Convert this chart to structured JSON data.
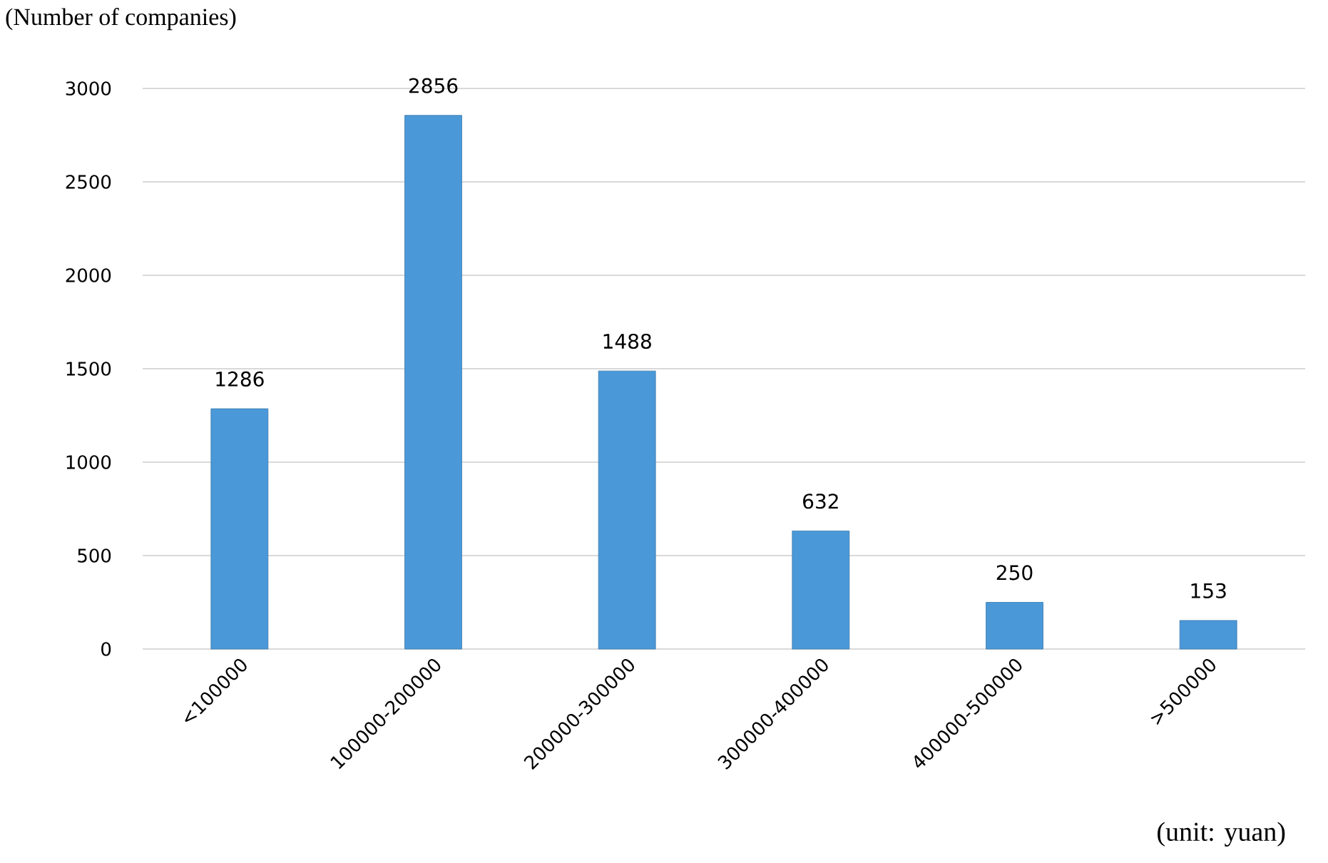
{
  "chart_data": {
    "type": "bar",
    "ylabel": "(Number of companies)",
    "categories": [
      "<100000",
      "100000-200000",
      "200000-300000",
      "300000-400000",
      "400000-500000",
      ">500000"
    ],
    "values": [
      1286,
      2856,
      1488,
      632,
      250,
      153
    ],
    "color": "#4a98d8",
    "ylim": [
      0,
      3000
    ],
    "yticks": [
      0,
      500,
      1000,
      1500,
      2000,
      2500,
      3000
    ],
    "grid": "y",
    "data_labels": true,
    "annotations": [
      "(unit: yuan)"
    ]
  }
}
